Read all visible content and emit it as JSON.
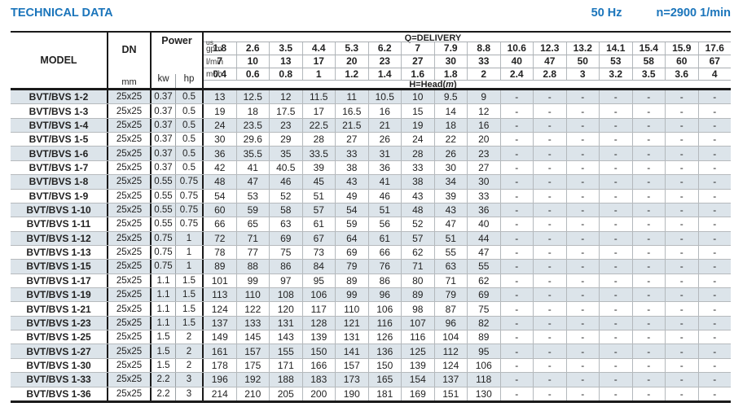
{
  "header": {
    "title": "TECHNICAL DATA",
    "frequency": "50 Hz",
    "speed": "n=2900 1/min",
    "accent_color": "#1b75bb"
  },
  "table": {
    "model_label": "MODEL",
    "dn_label": "DN",
    "dn_unit": "mm",
    "power_label": "Power",
    "kw_label": "kw",
    "hp_label": "hp",
    "delivery_label": "Q=DELIVERY",
    "head_label": {
      "prefix": "H=Head(",
      "unit": "m",
      "suffix": ")"
    },
    "columns": 16,
    "empty_cell": "-",
    "row_shade_color": "#dce4ea",
    "flow_rows": [
      {
        "id": "gpm",
        "unit_top": "us",
        "unit_label": "gpm",
        "values": [
          "1.8",
          "2.6",
          "3.5",
          "4.4",
          "5.3",
          "6.2",
          "7",
          "7.9",
          "8.8",
          "10.6",
          "12.3",
          "13.2",
          "14.1",
          "15.4",
          "15.9",
          "17.6"
        ]
      },
      {
        "id": "lmin",
        "unit_top": "",
        "unit_label": "l/min",
        "values": [
          "7",
          "10",
          "13",
          "17",
          "20",
          "23",
          "27",
          "30",
          "33",
          "40",
          "47",
          "50",
          "53",
          "58",
          "60",
          "67"
        ]
      },
      {
        "id": "m3h",
        "unit_top": "",
        "unit_label": "m³/h",
        "values": [
          "0.4",
          "0.6",
          "0.8",
          "1",
          "1.2",
          "1.4",
          "1.6",
          "1.8",
          "2",
          "2.4",
          "2.8",
          "3",
          "3.2",
          "3.5",
          "3.6",
          "4"
        ]
      }
    ],
    "rows": [
      {
        "model": "BVT/BVS 1-2",
        "dn": "25x25",
        "kw": "0.37",
        "hp": "0.5",
        "heads": [
          "13",
          "12.5",
          "12",
          "11.5",
          "11",
          "10.5",
          "10",
          "9.5",
          "9"
        ]
      },
      {
        "model": "BVT/BVS 1-3",
        "dn": "25x25",
        "kw": "0.37",
        "hp": "0.5",
        "heads": [
          "19",
          "18",
          "17.5",
          "17",
          "16.5",
          "16",
          "15",
          "14",
          "12"
        ]
      },
      {
        "model": "BVT/BVS 1-4",
        "dn": "25x25",
        "kw": "0.37",
        "hp": "0.5",
        "heads": [
          "24",
          "23.5",
          "23",
          "22.5",
          "21.5",
          "21",
          "19",
          "18",
          "16"
        ]
      },
      {
        "model": "BVT/BVS 1-5",
        "dn": "25x25",
        "kw": "0.37",
        "hp": "0.5",
        "heads": [
          "30",
          "29.6",
          "29",
          "28",
          "27",
          "26",
          "24",
          "22",
          "20"
        ]
      },
      {
        "model": "BVT/BVS 1-6",
        "dn": "25x25",
        "kw": "0.37",
        "hp": "0.5",
        "heads": [
          "36",
          "35.5",
          "35",
          "33.5",
          "33",
          "31",
          "28",
          "26",
          "23"
        ]
      },
      {
        "model": "BVT/BVS 1-7",
        "dn": "25x25",
        "kw": "0.37",
        "hp": "0.5",
        "heads": [
          "42",
          "41",
          "40.5",
          "39",
          "38",
          "36",
          "33",
          "30",
          "27"
        ]
      },
      {
        "model": "BVT/BVS 1-8",
        "dn": "25x25",
        "kw": "0.55",
        "hp": "0.75",
        "heads": [
          "48",
          "47",
          "46",
          "45",
          "43",
          "41",
          "38",
          "34",
          "30"
        ]
      },
      {
        "model": "BVT/BVS 1-9",
        "dn": "25x25",
        "kw": "0.55",
        "hp": "0.75",
        "heads": [
          "54",
          "53",
          "52",
          "51",
          "49",
          "46",
          "43",
          "39",
          "33"
        ]
      },
      {
        "model": "BVT/BVS 1-10",
        "dn": "25x25",
        "kw": "0.55",
        "hp": "0.75",
        "heads": [
          "60",
          "59",
          "58",
          "57",
          "54",
          "51",
          "48",
          "43",
          "36"
        ]
      },
      {
        "model": "BVT/BVS 1-11",
        "dn": "25x25",
        "kw": "0.55",
        "hp": "0.75",
        "heads": [
          "66",
          "65",
          "63",
          "61",
          "59",
          "56",
          "52",
          "47",
          "40"
        ]
      },
      {
        "model": "BVT/BVS 1-12",
        "dn": "25x25",
        "kw": "0.75",
        "hp": "1",
        "heads": [
          "72",
          "71",
          "69",
          "67",
          "64",
          "61",
          "57",
          "51",
          "44"
        ]
      },
      {
        "model": "BVT/BVS 1-13",
        "dn": "25x25",
        "kw": "0.75",
        "hp": "1",
        "heads": [
          "78",
          "77",
          "75",
          "73",
          "69",
          "66",
          "62",
          "55",
          "47"
        ]
      },
      {
        "model": "BVT/BVS 1-15",
        "dn": "25x25",
        "kw": "0.75",
        "hp": "1",
        "heads": [
          "89",
          "88",
          "86",
          "84",
          "79",
          "76",
          "71",
          "63",
          "55"
        ]
      },
      {
        "model": "BVT/BVS 1-17",
        "dn": "25x25",
        "kw": "1.1",
        "hp": "1.5",
        "heads": [
          "101",
          "99",
          "97",
          "95",
          "89",
          "86",
          "80",
          "71",
          "62"
        ]
      },
      {
        "model": "BVT/BVS 1-19",
        "dn": "25x25",
        "kw": "1.1",
        "hp": "1.5",
        "heads": [
          "113",
          "110",
          "108",
          "106",
          "99",
          "96",
          "89",
          "79",
          "69"
        ]
      },
      {
        "model": "BVT/BVS 1-21",
        "dn": "25x25",
        "kw": "1.1",
        "hp": "1.5",
        "heads": [
          "124",
          "122",
          "120",
          "117",
          "110",
          "106",
          "98",
          "87",
          "75"
        ]
      },
      {
        "model": "BVT/BVS 1-23",
        "dn": "25x25",
        "kw": "1.1",
        "hp": "1.5",
        "heads": [
          "137",
          "133",
          "131",
          "128",
          "121",
          "116",
          "107",
          "96",
          "82"
        ]
      },
      {
        "model": "BVT/BVS 1-25",
        "dn": "25x25",
        "kw": "1.5",
        "hp": "2",
        "heads": [
          "149",
          "145",
          "143",
          "139",
          "131",
          "126",
          "116",
          "104",
          "89"
        ]
      },
      {
        "model": "BVT/BVS 1-27",
        "dn": "25x25",
        "kw": "1.5",
        "hp": "2",
        "heads": [
          "161",
          "157",
          "155",
          "150",
          "141",
          "136",
          "125",
          "112",
          "95"
        ]
      },
      {
        "model": "BVT/BVS 1-30",
        "dn": "25x25",
        "kw": "1.5",
        "hp": "2",
        "heads": [
          "178",
          "175",
          "171",
          "166",
          "157",
          "150",
          "139",
          "124",
          "106"
        ]
      },
      {
        "model": "BVT/BVS 1-33",
        "dn": "25x25",
        "kw": "2.2",
        "hp": "3",
        "heads": [
          "196",
          "192",
          "188",
          "183",
          "173",
          "165",
          "154",
          "137",
          "118"
        ]
      },
      {
        "model": "BVT/BVS 1-36",
        "dn": "25x25",
        "kw": "2.2",
        "hp": "3",
        "heads": [
          "214",
          "210",
          "205",
          "200",
          "190",
          "181",
          "169",
          "151",
          "130"
        ]
      }
    ]
  }
}
